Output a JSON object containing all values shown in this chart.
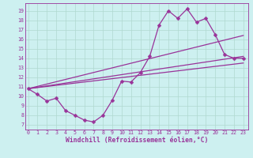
{
  "title": "",
  "xlabel": "Windchill (Refroidissement éolien,°C)",
  "ylabel": "",
  "bg_color": "#cdf0f0",
  "grid_color": "#b0d8d0",
  "line_color": "#993399",
  "x_ticks": [
    0,
    1,
    2,
    3,
    4,
    5,
    6,
    7,
    8,
    9,
    10,
    11,
    12,
    13,
    14,
    15,
    16,
    17,
    18,
    19,
    20,
    21,
    22,
    23
  ],
  "y_ticks": [
    7,
    8,
    9,
    10,
    11,
    12,
    13,
    14,
    15,
    16,
    17,
    18,
    19
  ],
  "xlim": [
    -0.3,
    23.5
  ],
  "ylim": [
    6.5,
    19.8
  ],
  "series": [
    {
      "x": [
        0,
        1,
        2,
        3,
        4,
        5,
        6,
        7,
        8,
        9,
        10,
        11,
        12,
        13,
        14,
        15,
        16,
        17,
        18,
        19,
        20,
        21,
        22,
        23
      ],
      "y": [
        10.8,
        10.2,
        9.5,
        9.8,
        8.5,
        8.0,
        7.5,
        7.3,
        8.0,
        9.6,
        11.6,
        11.5,
        12.5,
        14.2,
        17.5,
        19.0,
        18.2,
        19.2,
        17.8,
        18.2,
        16.5,
        14.4,
        14.0,
        14.0
      ],
      "marker": "D",
      "markersize": 2.5,
      "linewidth": 0.9,
      "zorder": 4
    },
    {
      "x": [
        0,
        23
      ],
      "y": [
        10.8,
        16.4
      ],
      "marker": null,
      "linewidth": 0.9,
      "zorder": 3
    },
    {
      "x": [
        0,
        23
      ],
      "y": [
        10.8,
        14.2
      ],
      "marker": null,
      "linewidth": 0.9,
      "zorder": 3
    },
    {
      "x": [
        0,
        23
      ],
      "y": [
        10.8,
        13.5
      ],
      "marker": null,
      "linewidth": 0.9,
      "zorder": 3
    }
  ],
  "tick_fontsize": 4.8,
  "label_fontsize": 5.8,
  "label_fontweight": "bold"
}
